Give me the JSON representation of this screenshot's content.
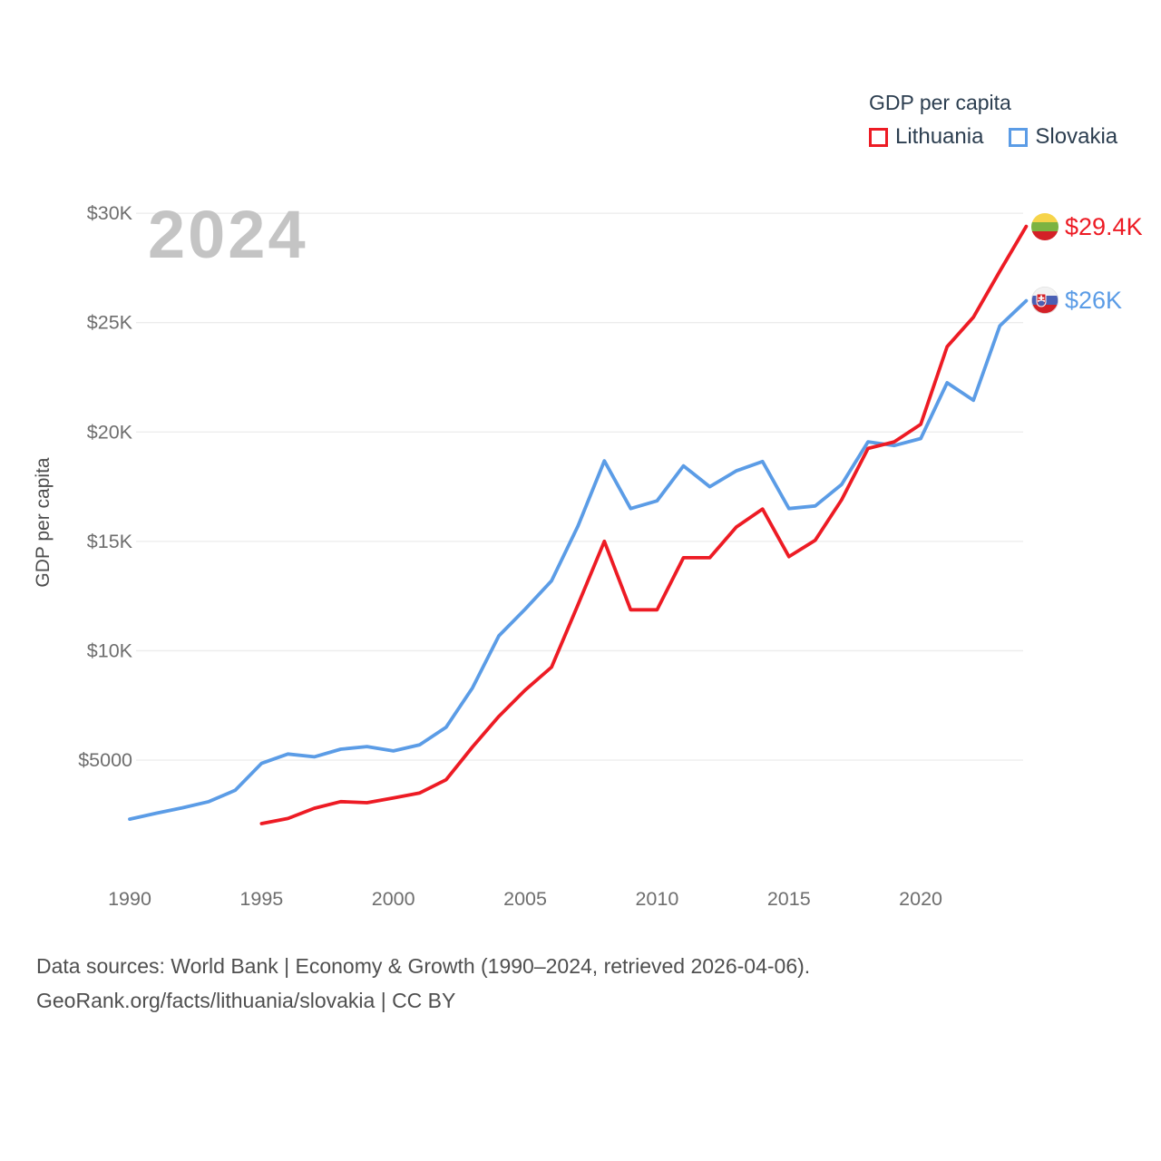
{
  "watermark": "2024",
  "legend": {
    "title": "GDP per capita",
    "items": [
      {
        "label": "Lithuania",
        "color": "#ed1b24"
      },
      {
        "label": "Slovakia",
        "color": "#5b9ce6"
      }
    ]
  },
  "end_labels": {
    "lithuania": {
      "value_label": "$29.4K",
      "flag": "lithuania-flag",
      "color": "#ed1b24"
    },
    "slovakia": {
      "value_label": "$26K",
      "flag": "slovakia-flag",
      "color": "#5b9ce6"
    }
  },
  "y_axis": {
    "title": "GDP per capita",
    "ticks": [
      {
        "value": 30000,
        "label": "$30K"
      },
      {
        "value": 25000,
        "label": "$25K"
      },
      {
        "value": 20000,
        "label": "$20K"
      },
      {
        "value": 15000,
        "label": "$15K"
      },
      {
        "value": 10000,
        "label": "$10K"
      },
      {
        "value": 5000,
        "label": "$5000"
      }
    ]
  },
  "x_axis": {
    "ticks": [
      {
        "value": 1990,
        "label": "1990"
      },
      {
        "value": 1995,
        "label": "1995"
      },
      {
        "value": 2000,
        "label": "2000"
      },
      {
        "value": 2005,
        "label": "2005"
      },
      {
        "value": 2010,
        "label": "2010"
      },
      {
        "value": 2015,
        "label": "2015"
      },
      {
        "value": 2020,
        "label": "2020"
      }
    ]
  },
  "footer": {
    "line1": "Data sources: World Bank | Economy & Growth (1990–2024, retrieved 2026-04-06).",
    "line2": "GeoRank.org/facts/lithuania/slovakia | CC BY"
  },
  "chart_data": {
    "type": "line",
    "title": "GDP per capita",
    "ylabel": "GDP per capita",
    "xlabel": "",
    "xlim": [
      1989,
      2025
    ],
    "ylim": [
      0,
      31000
    ],
    "grid": true,
    "legend_position": "top-right",
    "series": [
      {
        "name": "Slovakia",
        "color": "#5b9ce6",
        "start_year": 1990,
        "end_value_label": "$26K",
        "values": [
          2300,
          2570,
          2820,
          3100,
          3620,
          4850,
          5280,
          5150,
          5500,
          5620,
          5420,
          5700,
          6500,
          8300,
          10680,
          11900,
          13200,
          15700,
          18680,
          16500,
          16850,
          18450,
          17500,
          18220,
          18650,
          16500,
          16620,
          17600,
          19550,
          19380,
          19700,
          22250,
          21450,
          24850,
          26000
        ]
      },
      {
        "name": "Lithuania",
        "color": "#ed1b24",
        "start_year": 1995,
        "end_value_label": "$29.4K",
        "values": [
          2100,
          2330,
          2800,
          3100,
          3050,
          3270,
          3500,
          4100,
          5600,
          7000,
          8200,
          9250,
          12100,
          15000,
          11870,
          11870,
          14250,
          14250,
          15650,
          16480,
          14300,
          15050,
          16900,
          19250,
          19550,
          20350,
          23900,
          25250,
          27350,
          29400
        ]
      }
    ]
  }
}
